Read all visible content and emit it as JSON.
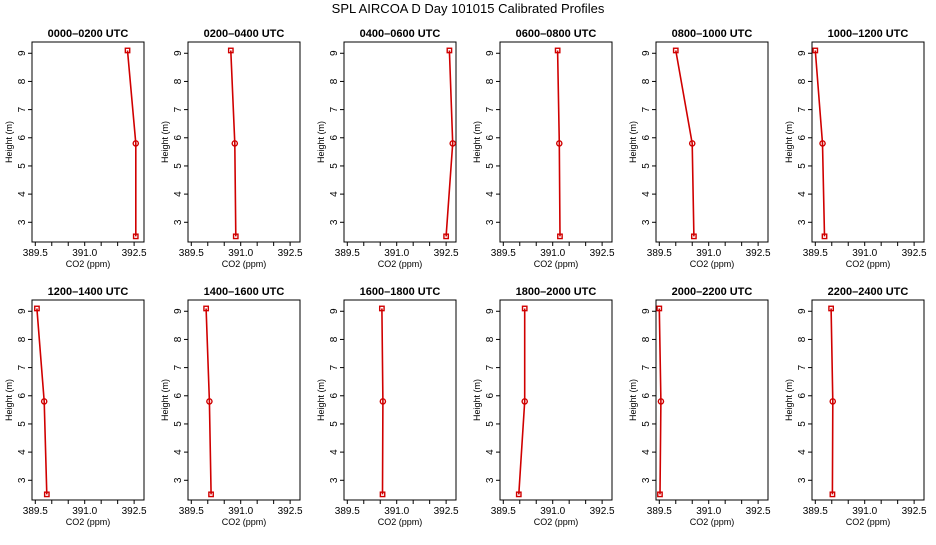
{
  "figure": {
    "title": "SPL AIRCOA D  Day 101015  Calibrated Profiles"
  },
  "chart_data": [
    {
      "type": "line",
      "title": "0000–0200 UTC",
      "xlabel": "CO2 (ppm)",
      "ylabel": "Height (m)",
      "xlim": [
        389.4,
        392.8
      ],
      "ylim": [
        2.3,
        9.4
      ],
      "xticks": [
        "389.5",
        "391.0",
        "392.5"
      ],
      "x_minor_ticks": [
        390.0,
        390.5,
        391.5,
        392.0
      ],
      "yticks": [
        "3",
        "4",
        "5",
        "6",
        "7",
        "8",
        "9"
      ],
      "series": [
        {
          "x": [
            392.3,
            392.55,
            392.55
          ],
          "y": [
            9.1,
            5.8,
            2.5
          ]
        }
      ]
    },
    {
      "type": "line",
      "title": "0200–0400 UTC",
      "xlabel": "CO2 (ppm)",
      "ylabel": "Height (m)",
      "xlim": [
        389.4,
        392.8
      ],
      "ylim": [
        2.3,
        9.4
      ],
      "xticks": [
        "389.5",
        "391.0",
        "392.5"
      ],
      "x_minor_ticks": [
        390.0,
        390.5,
        391.5,
        392.0
      ],
      "yticks": [
        "3",
        "4",
        "5",
        "6",
        "7",
        "8",
        "9"
      ],
      "series": [
        {
          "x": [
            390.7,
            390.82,
            390.85
          ],
          "y": [
            9.1,
            5.8,
            2.5
          ]
        }
      ]
    },
    {
      "type": "line",
      "title": "0400–0600 UTC",
      "xlabel": "CO2 (ppm)",
      "ylabel": "Height (m)",
      "xlim": [
        389.4,
        392.8
      ],
      "ylim": [
        2.3,
        9.4
      ],
      "xticks": [
        "389.5",
        "391.0",
        "392.5"
      ],
      "x_minor_ticks": [
        390.0,
        390.5,
        391.5,
        392.0
      ],
      "yticks": [
        "3",
        "4",
        "5",
        "6",
        "7",
        "8",
        "9"
      ],
      "series": [
        {
          "x": [
            392.6,
            392.7,
            392.5
          ],
          "y": [
            9.1,
            5.8,
            2.5
          ]
        }
      ]
    },
    {
      "type": "line",
      "title": "0600–0800 UTC",
      "xlabel": "CO2 (ppm)",
      "ylabel": "Height (m)",
      "xlim": [
        389.4,
        392.8
      ],
      "ylim": [
        2.3,
        9.4
      ],
      "xticks": [
        "389.5",
        "391.0",
        "392.5"
      ],
      "x_minor_ticks": [
        390.0,
        390.5,
        391.5,
        392.0
      ],
      "yticks": [
        "3",
        "4",
        "5",
        "6",
        "7",
        "8",
        "9"
      ],
      "series": [
        {
          "x": [
            391.15,
            391.2,
            391.22
          ],
          "y": [
            9.1,
            5.8,
            2.5
          ]
        }
      ]
    },
    {
      "type": "line",
      "title": "0800–1000 UTC",
      "xlabel": "CO2 (ppm)",
      "ylabel": "Height (m)",
      "xlim": [
        389.4,
        392.8
      ],
      "ylim": [
        2.3,
        9.4
      ],
      "xticks": [
        "389.5",
        "391.0",
        "392.5"
      ],
      "x_minor_ticks": [
        390.0,
        390.5,
        391.5,
        392.0
      ],
      "yticks": [
        "3",
        "4",
        "5",
        "6",
        "7",
        "8",
        "9"
      ],
      "series": [
        {
          "x": [
            390.0,
            390.5,
            390.55
          ],
          "y": [
            9.1,
            5.8,
            2.5
          ]
        }
      ]
    },
    {
      "type": "line",
      "title": "1000–1200 UTC",
      "xlabel": "CO2 (ppm)",
      "ylabel": "Height (m)",
      "xlim": [
        389.4,
        392.8
      ],
      "ylim": [
        2.3,
        9.4
      ],
      "xticks": [
        "389.5",
        "391.0",
        "392.5"
      ],
      "x_minor_ticks": [
        390.0,
        390.5,
        391.5,
        392.0
      ],
      "yticks": [
        "3",
        "4",
        "5",
        "6",
        "7",
        "8",
        "9"
      ],
      "series": [
        {
          "x": [
            389.5,
            389.72,
            389.78
          ],
          "y": [
            9.1,
            5.8,
            2.5
          ]
        }
      ]
    },
    {
      "type": "line",
      "title": "1200–1400 UTC",
      "xlabel": "CO2 (ppm)",
      "ylabel": "Height (m)",
      "xlim": [
        389.4,
        392.8
      ],
      "ylim": [
        2.3,
        9.4
      ],
      "xticks": [
        "389.5",
        "391.0",
        "392.5"
      ],
      "x_minor_ticks": [
        390.0,
        390.5,
        391.5,
        392.0
      ],
      "yticks": [
        "3",
        "4",
        "5",
        "6",
        "7",
        "8",
        "9"
      ],
      "series": [
        {
          "x": [
            389.55,
            389.77,
            389.85
          ],
          "y": [
            9.1,
            5.8,
            2.5
          ]
        }
      ]
    },
    {
      "type": "line",
      "title": "1400–1600 UTC",
      "xlabel": "CO2 (ppm)",
      "ylabel": "Height (m)",
      "xlim": [
        389.4,
        392.8
      ],
      "ylim": [
        2.3,
        9.4
      ],
      "xticks": [
        "389.5",
        "391.0",
        "392.5"
      ],
      "x_minor_ticks": [
        390.0,
        390.5,
        391.5,
        392.0
      ],
      "yticks": [
        "3",
        "4",
        "5",
        "6",
        "7",
        "8",
        "9"
      ],
      "series": [
        {
          "x": [
            389.95,
            390.05,
            390.1
          ],
          "y": [
            9.1,
            5.8,
            2.5
          ]
        }
      ]
    },
    {
      "type": "line",
      "title": "1600–1800 UTC",
      "xlabel": "CO2 (ppm)",
      "ylabel": "Height (m)",
      "xlim": [
        389.4,
        392.8
      ],
      "ylim": [
        2.3,
        9.4
      ],
      "xticks": [
        "389.5",
        "391.0",
        "392.5"
      ],
      "x_minor_ticks": [
        390.0,
        390.5,
        391.5,
        392.0
      ],
      "yticks": [
        "3",
        "4",
        "5",
        "6",
        "7",
        "8",
        "9"
      ],
      "series": [
        {
          "x": [
            390.55,
            390.58,
            390.57
          ],
          "y": [
            9.1,
            5.8,
            2.5
          ]
        }
      ]
    },
    {
      "type": "line",
      "title": "1800–2000 UTC",
      "xlabel": "CO2 (ppm)",
      "ylabel": "Height (m)",
      "xlim": [
        389.4,
        392.8
      ],
      "ylim": [
        2.3,
        9.4
      ],
      "xticks": [
        "389.5",
        "391.0",
        "392.5"
      ],
      "x_minor_ticks": [
        390.0,
        390.5,
        391.5,
        392.0
      ],
      "yticks": [
        "3",
        "4",
        "5",
        "6",
        "7",
        "8",
        "9"
      ],
      "series": [
        {
          "x": [
            390.15,
            390.15,
            389.97
          ],
          "y": [
            9.1,
            5.8,
            2.5
          ]
        }
      ]
    },
    {
      "type": "line",
      "title": "2000–2200 UTC",
      "xlabel": "CO2 (ppm)",
      "ylabel": "Height (m)",
      "xlim": [
        389.4,
        392.8
      ],
      "ylim": [
        2.3,
        9.4
      ],
      "xticks": [
        "389.5",
        "391.0",
        "392.5"
      ],
      "x_minor_ticks": [
        390.0,
        390.5,
        391.5,
        392.0
      ],
      "yticks": [
        "3",
        "4",
        "5",
        "6",
        "7",
        "8",
        "9"
      ],
      "series": [
        {
          "x": [
            389.5,
            389.55,
            389.52
          ],
          "y": [
            9.1,
            5.8,
            2.5
          ]
        }
      ]
    },
    {
      "type": "line",
      "title": "2200–2400 UTC",
      "xlabel": "CO2 (ppm)",
      "ylabel": "Height (m)",
      "xlim": [
        389.4,
        392.8
      ],
      "ylim": [
        2.3,
        9.4
      ],
      "xticks": [
        "389.5",
        "391.0",
        "392.5"
      ],
      "x_minor_ticks": [
        390.0,
        390.5,
        391.5,
        392.0
      ],
      "yticks": [
        "3",
        "4",
        "5",
        "6",
        "7",
        "8",
        "9"
      ],
      "series": [
        {
          "x": [
            389.98,
            390.03,
            390.02
          ],
          "y": [
            9.1,
            5.8,
            2.5
          ]
        }
      ]
    }
  ]
}
